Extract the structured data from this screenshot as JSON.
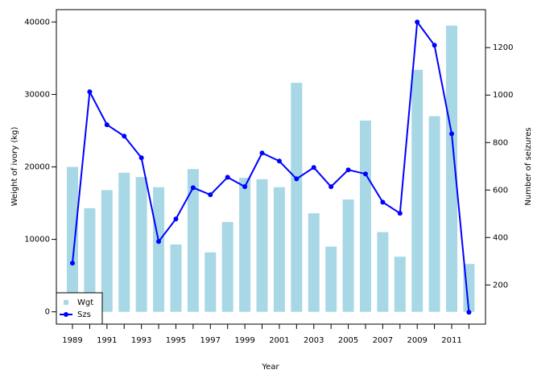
{
  "chart_data": {
    "type": "bar",
    "xlabel": "Year",
    "ylabel": "Weight of ivory (kg)",
    "y2label": "Number of seizures",
    "categories": [
      "1989",
      null,
      "1991",
      null,
      "1993",
      null,
      "1995",
      null,
      "1997",
      null,
      "1999",
      null,
      "2001",
      null,
      "2003",
      null,
      "2005",
      null,
      "2007",
      null,
      "2009",
      null,
      "2011",
      null
    ],
    "series": [
      {
        "name": "Wgt",
        "type": "bar",
        "color": "#a8d8e6",
        "values": [
          20000,
          14300,
          16800,
          19200,
          18600,
          17200,
          9300,
          19700,
          8200,
          12400,
          18500,
          18300,
          17200,
          31600,
          13600,
          9000,
          15500,
          26400,
          11000,
          7600,
          33400,
          27000,
          39500,
          6600
        ]
      },
      {
        "name": "Szs",
        "type": "line",
        "axis": "y2",
        "color": "#0000ff",
        "values": [
          292,
          1014,
          875,
          827,
          736,
          383,
          478,
          610,
          580,
          654,
          614,
          756,
          722,
          647,
          695,
          614,
          685,
          668,
          549,
          502,
          1308,
          1210,
          837,
          85
        ]
      }
    ],
    "ylim": [
      -1700,
      41700
    ],
    "yticks": [
      0,
      10000,
      20000,
      30000,
      40000
    ],
    "y2lim": [
      35,
      1360
    ],
    "y2ticks": [
      200,
      400,
      600,
      800,
      1000,
      1200
    ],
    "legend": "bottomleft"
  }
}
